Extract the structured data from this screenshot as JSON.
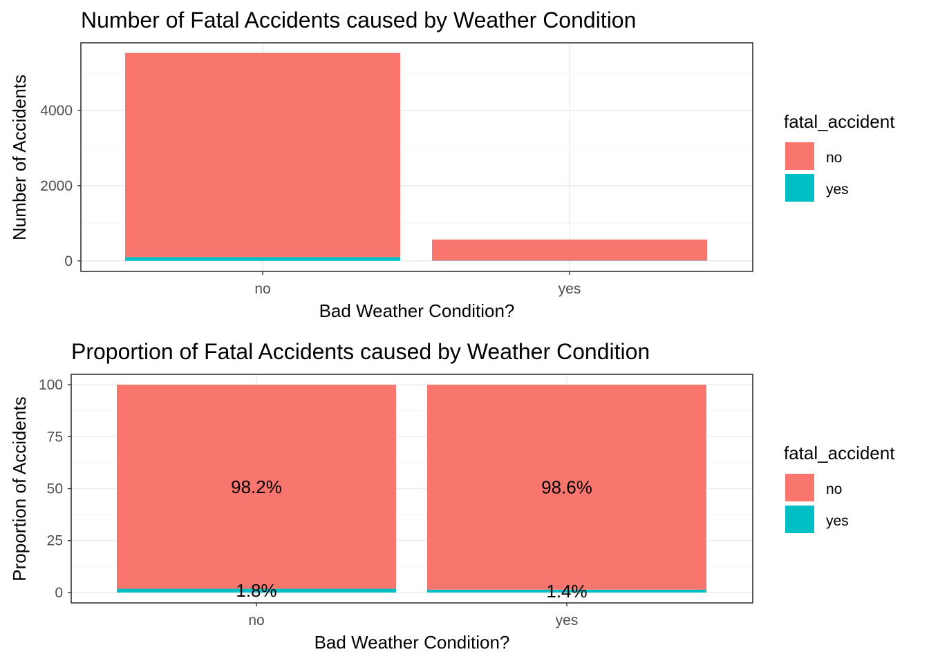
{
  "colors": {
    "no": "#F8766D",
    "yes": "#00BFC4"
  },
  "chart_data": [
    {
      "type": "bar",
      "stacked": true,
      "title": "Number of Fatal Accidents caused by Weather Condition",
      "xlabel": "Bad Weather Condition?",
      "ylabel": "Number of Accidents",
      "categories": [
        "no",
        "yes"
      ],
      "ylim": [
        -280,
        5800
      ],
      "yticks": [
        0,
        2000,
        4000
      ],
      "yticks_labels": [
        "0",
        "2000",
        "4000"
      ],
      "grid": true,
      "legend_position": "right",
      "legend_title": "fatal_accident",
      "series": [
        {
          "name": "yes",
          "values": [
            100,
            8
          ]
        },
        {
          "name": "no",
          "values": [
            5430,
            560
          ]
        }
      ]
    },
    {
      "type": "bar",
      "stacked": true,
      "title": "Proportion of Fatal Accidents caused by Weather Condition",
      "xlabel": "Bad Weather Condition?",
      "ylabel": "Proportion of Accidents",
      "categories": [
        "no",
        "yes"
      ],
      "ylim": [
        -5,
        105
      ],
      "yticks": [
        0,
        25,
        50,
        75,
        100
      ],
      "yticks_labels": [
        "0",
        "25",
        "50",
        "75",
        "100"
      ],
      "grid": true,
      "legend_position": "right",
      "legend_title": "fatal_accident",
      "series": [
        {
          "name": "yes",
          "values": [
            1.8,
            1.4
          ],
          "labels": [
            "1.8%",
            "1.4%"
          ]
        },
        {
          "name": "no",
          "values": [
            98.2,
            98.6
          ],
          "labels": [
            "98.2%",
            "98.6%"
          ]
        }
      ]
    }
  ]
}
